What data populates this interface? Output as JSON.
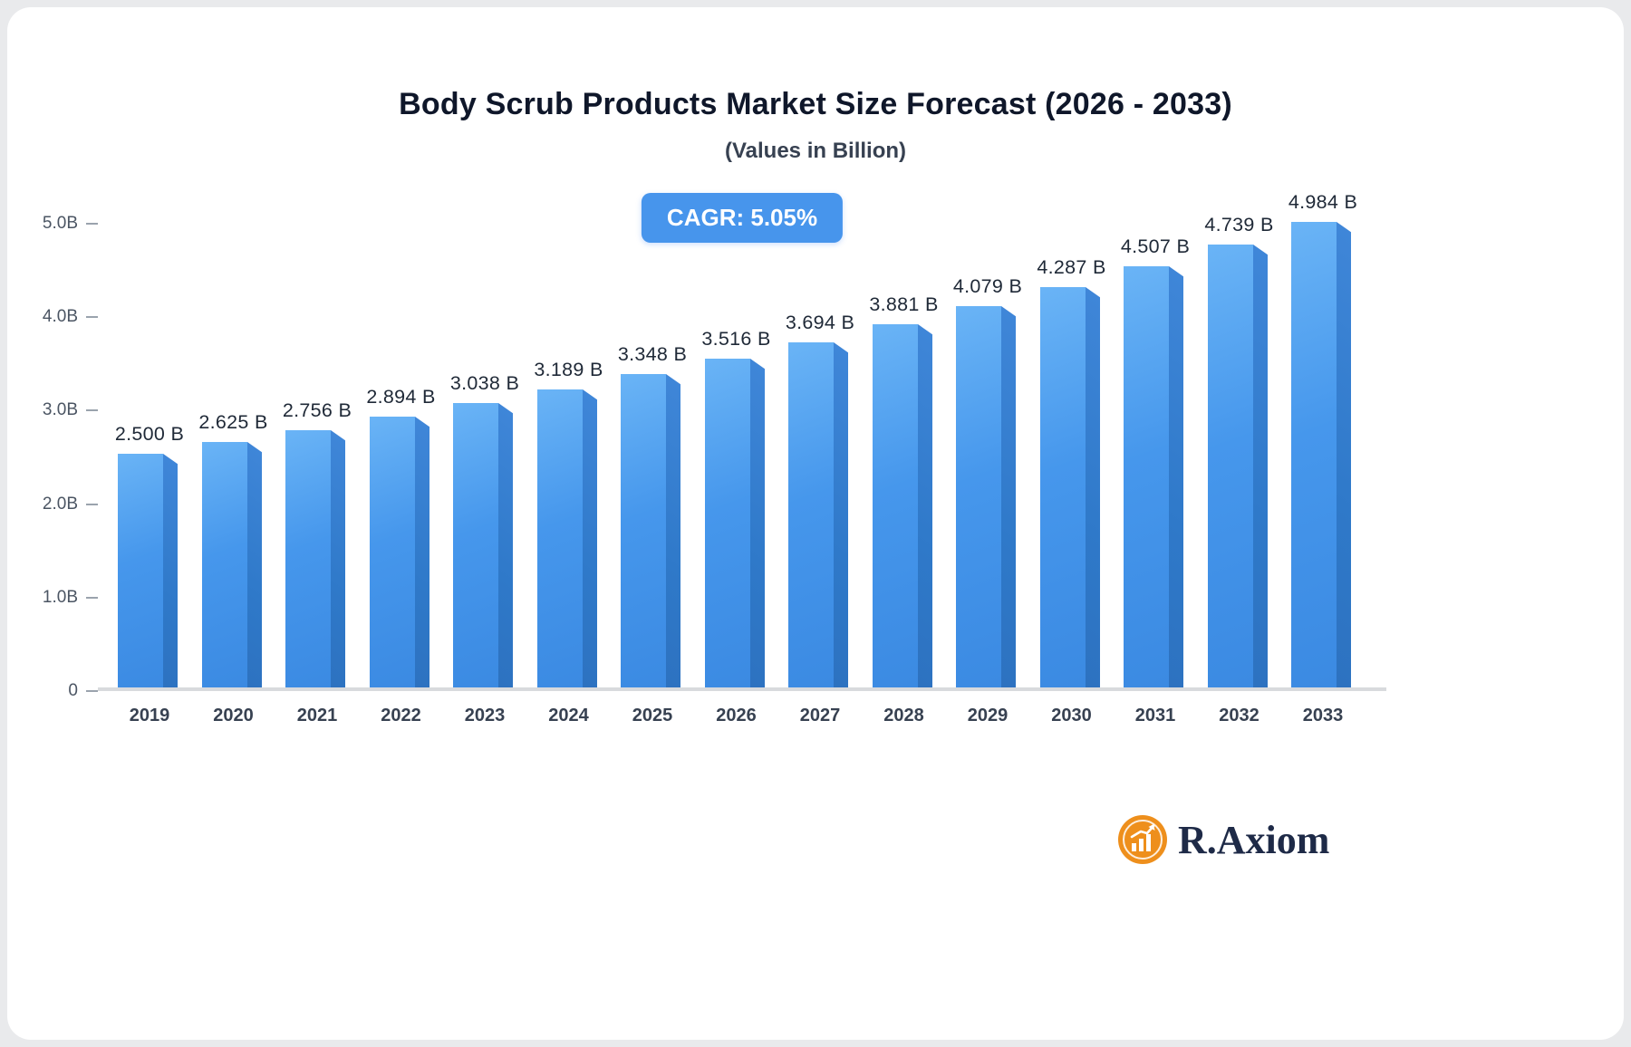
{
  "chart_data": {
    "type": "bar",
    "title": "Body Scrub Products Market Size Forecast (2026 - 2033)",
    "subtitle": "(Values in Billion)",
    "badge": "CAGR: 5.05%",
    "categories": [
      "2019",
      "2020",
      "2021",
      "2022",
      "2023",
      "2024",
      "2025",
      "2026",
      "2027",
      "2028",
      "2029",
      "2030",
      "2031",
      "2032",
      "2033"
    ],
    "values": [
      2.5,
      2.625,
      2.756,
      2.894,
      3.038,
      3.189,
      3.348,
      3.516,
      3.694,
      3.881,
      4.079,
      4.287,
      4.507,
      4.739,
      4.984
    ],
    "value_labels": [
      "2.500 B",
      "2.625 B",
      "2.756 B",
      "2.894 B",
      "3.038 B",
      "3.189 B",
      "3.348 B",
      "3.516 B",
      "3.694 B",
      "3.881 B",
      "4.079 B",
      "4.287 B",
      "4.507 B",
      "4.739 B",
      "4.984 B"
    ],
    "ylabel": "",
    "xlabel": "",
    "ylim": [
      0,
      5.0
    ],
    "yticks": [
      "0",
      "1.0B",
      "2.0B",
      "3.0B",
      "4.0B",
      "5.0B"
    ],
    "grid": false,
    "legend": "none",
    "bar_color_front": "#4697EC",
    "bar_color_side": "#2F79C9",
    "axis_color": "#D8DADD",
    "badge_color": "#4795EC"
  },
  "logo": {
    "text": "R.Axiom",
    "icon": "bar-chart-circle-icon",
    "icon_color": "#EE8F1C",
    "text_color": "#1E2A47"
  }
}
